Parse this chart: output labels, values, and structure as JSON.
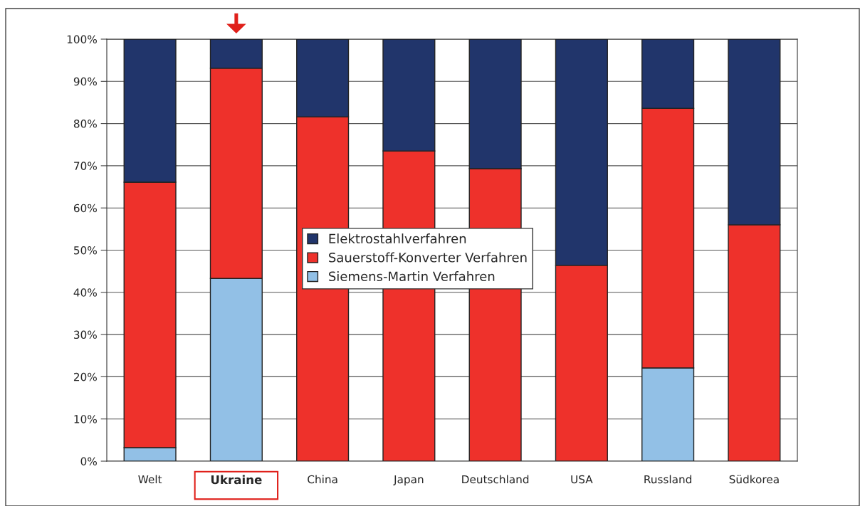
{
  "chart_data": {
    "type": "bar",
    "stacked": true,
    "categories": [
      "Welt",
      "Ukraine",
      "China",
      "Japan",
      "Deutschland",
      "USA",
      "Russland",
      "Südkorea"
    ],
    "series": [
      {
        "name": "Siemens-Martin Verfahren",
        "color": "#92c0e6",
        "values": [
          3.2,
          43.3,
          0,
          0,
          0,
          0,
          22.1,
          0
        ]
      },
      {
        "name": "Sauerstoff-Konverter Verfahren",
        "color": "#ee312b",
        "values": [
          62.9,
          49.8,
          81.6,
          73.5,
          69.3,
          46.4,
          61.5,
          56.0
        ]
      },
      {
        "name": "Elektrostahlverfahren",
        "color": "#21356b",
        "values": [
          33.9,
          6.9,
          18.4,
          26.5,
          30.7,
          53.6,
          16.4,
          44.0
        ]
      }
    ],
    "ylim": [
      0,
      100
    ],
    "yticks": [
      {
        "value": 0,
        "label": "0%"
      },
      {
        "value": 10,
        "label": "10%"
      },
      {
        "value": 20,
        "label": "20%"
      },
      {
        "value": 30,
        "label": "30%"
      },
      {
        "value": 40,
        "label": "40%"
      },
      {
        "value": 50,
        "label": "50%"
      },
      {
        "value": 60,
        "label": "60%"
      },
      {
        "value": 70,
        "label": "70%"
      },
      {
        "value": 80,
        "label": "80%"
      },
      {
        "value": 90,
        "label": "90%"
      },
      {
        "value": 100,
        "label": "100%"
      }
    ],
    "grid": "y",
    "legend": "center"
  }
}
